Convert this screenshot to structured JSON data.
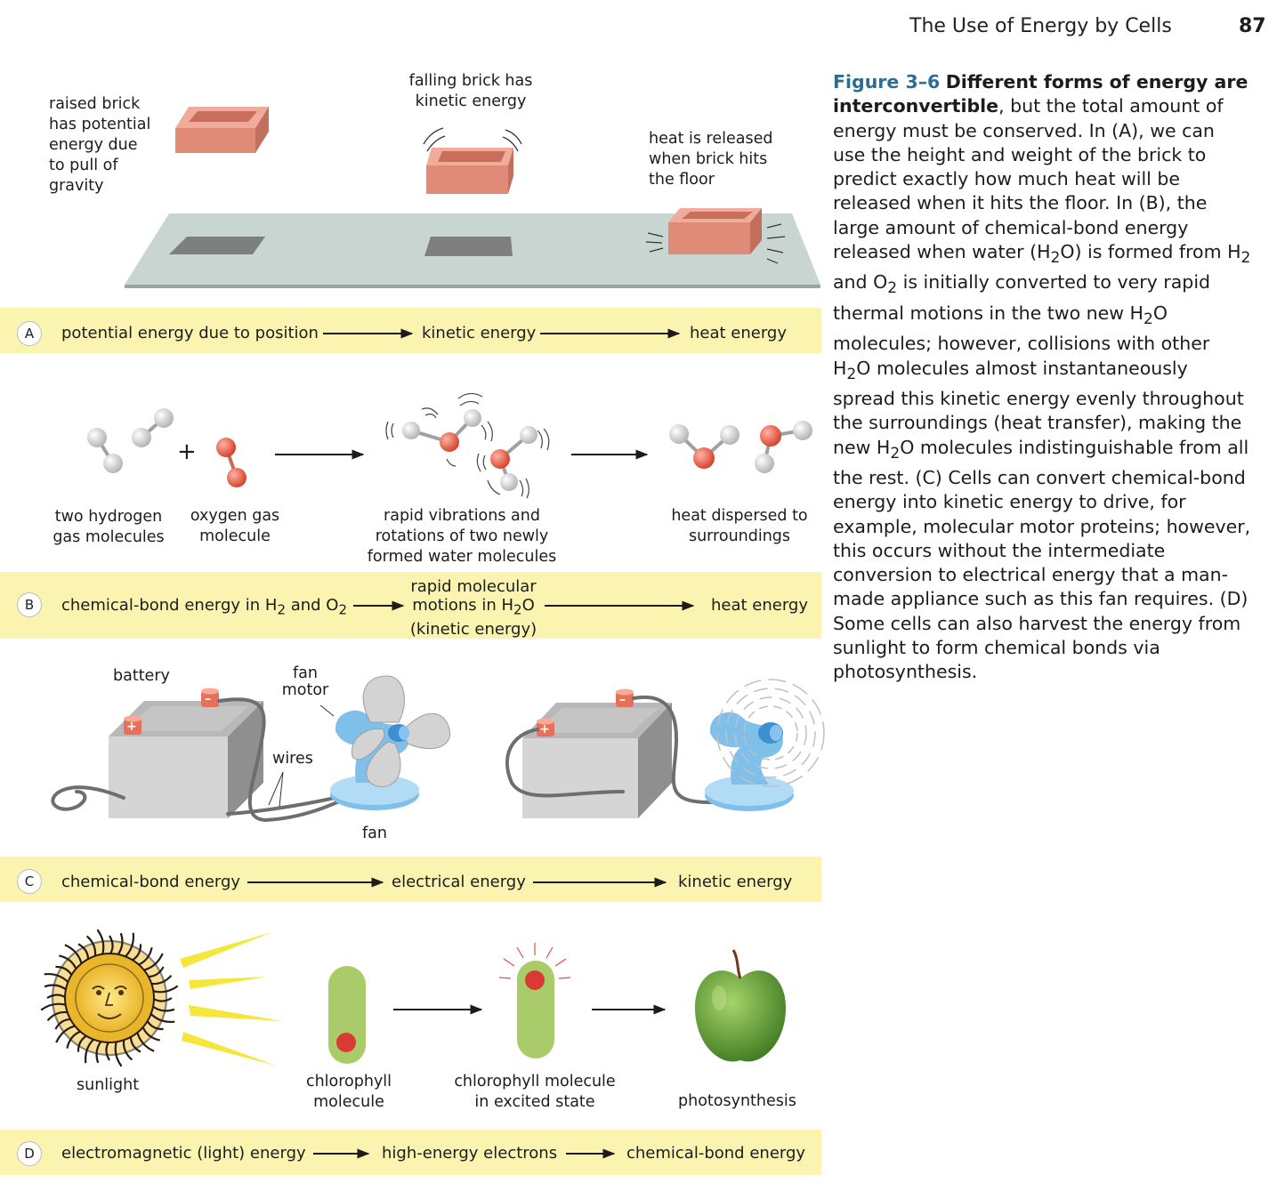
{
  "header": {
    "title": "The Use of Energy by Cells",
    "page_number": "87"
  },
  "caption": {
    "fig_label": "Figure 3–6",
    "bold_text": "Different forms of energy are interconvertible",
    "body_1": ", but the total amount of energy must be conserved. In (A), we can use the height and weight of the brick to predict exactly how much heat will be released when it hits the floor. In (B), the large amount of chemical-bond energy released when water (H",
    "body_2": "O) is formed from H",
    "body_3": " and O",
    "body_4": " is initially converted to very rapid thermal motions in the two new H",
    "body_5": "O molecules; however, collisions with other H",
    "body_6": "O molecules almost instantaneously spread this kinetic energy evenly throughout the surroundings (heat transfer), making the new H",
    "body_7": "O molecules indistinguishable from all the rest. (C) Cells can convert chemical-bond energy into kinetic energy to drive, for example, molecular motor proteins; however, this occurs without the intermediate conversion to electrical energy that a man-made appliance such as this fan requires. (D) Some cells can also harvest the energy from sunlight to form chemical bonds via photosynthesis.",
    "sub_2": "2"
  },
  "panel_a": {
    "letter": "A",
    "raised_1": "raised brick",
    "raised_2": "has potential",
    "raised_3": "energy due",
    "raised_4": "to pull of",
    "raised_5": "gravity",
    "falling_1": "falling brick has",
    "falling_2": "kinetic energy",
    "heat_1": "heat is released",
    "heat_2": "when brick hits",
    "heat_3": "the floor",
    "band_1": "potential energy due to position",
    "band_2": "kinetic energy",
    "band_3": "heat energy"
  },
  "panel_b": {
    "letter": "B",
    "plus": "+",
    "h2_1": "two hydrogen",
    "h2_2": "gas molecules",
    "o2_1": "oxygen gas",
    "o2_2": "molecule",
    "rapid_1": "rapid vibrations and",
    "rapid_2": "rotations of two newly",
    "rapid_3": "formed water molecules",
    "disp_1": "heat dispersed to",
    "disp_2": "surroundings",
    "band_1a": "chemical-bond energy in H",
    "band_1b": " and O",
    "sub": "2",
    "band_2a": "rapid molecular",
    "band_2b": "motions in H",
    "band_2c": "O",
    "band_2d": "(kinetic energy)",
    "band_3": "heat energy"
  },
  "panel_c": {
    "letter": "C",
    "battery": "battery",
    "fan_motor_1": "fan",
    "fan_motor_2": "motor",
    "wires": "wires",
    "fan": "fan",
    "plus_sign": "+",
    "minus_sign": "–",
    "band_1": "chemical-bond energy",
    "band_2": "electrical energy",
    "band_3": "kinetic energy"
  },
  "panel_d": {
    "letter": "D",
    "sunlight": "sunlight",
    "chl_1": "chlorophyll",
    "chl_2": "molecule",
    "exc_1": "chlorophyll molecule",
    "exc_2": "in excited state",
    "photo": "photosynthesis",
    "band_1": "electromagnetic (light) energy",
    "band_2": "high-energy electrons",
    "band_3": "chemical-bond energy"
  },
  "colors": {
    "band": "#fbf4b0",
    "brick": "#e08a78",
    "caption_label": "#2e6d92",
    "fan": "#7fc0ea",
    "battery": "#d4d5d4",
    "chlorophyll": "#a9cb6a",
    "electron": "#d93a32",
    "apple": "#6aa83c"
  }
}
